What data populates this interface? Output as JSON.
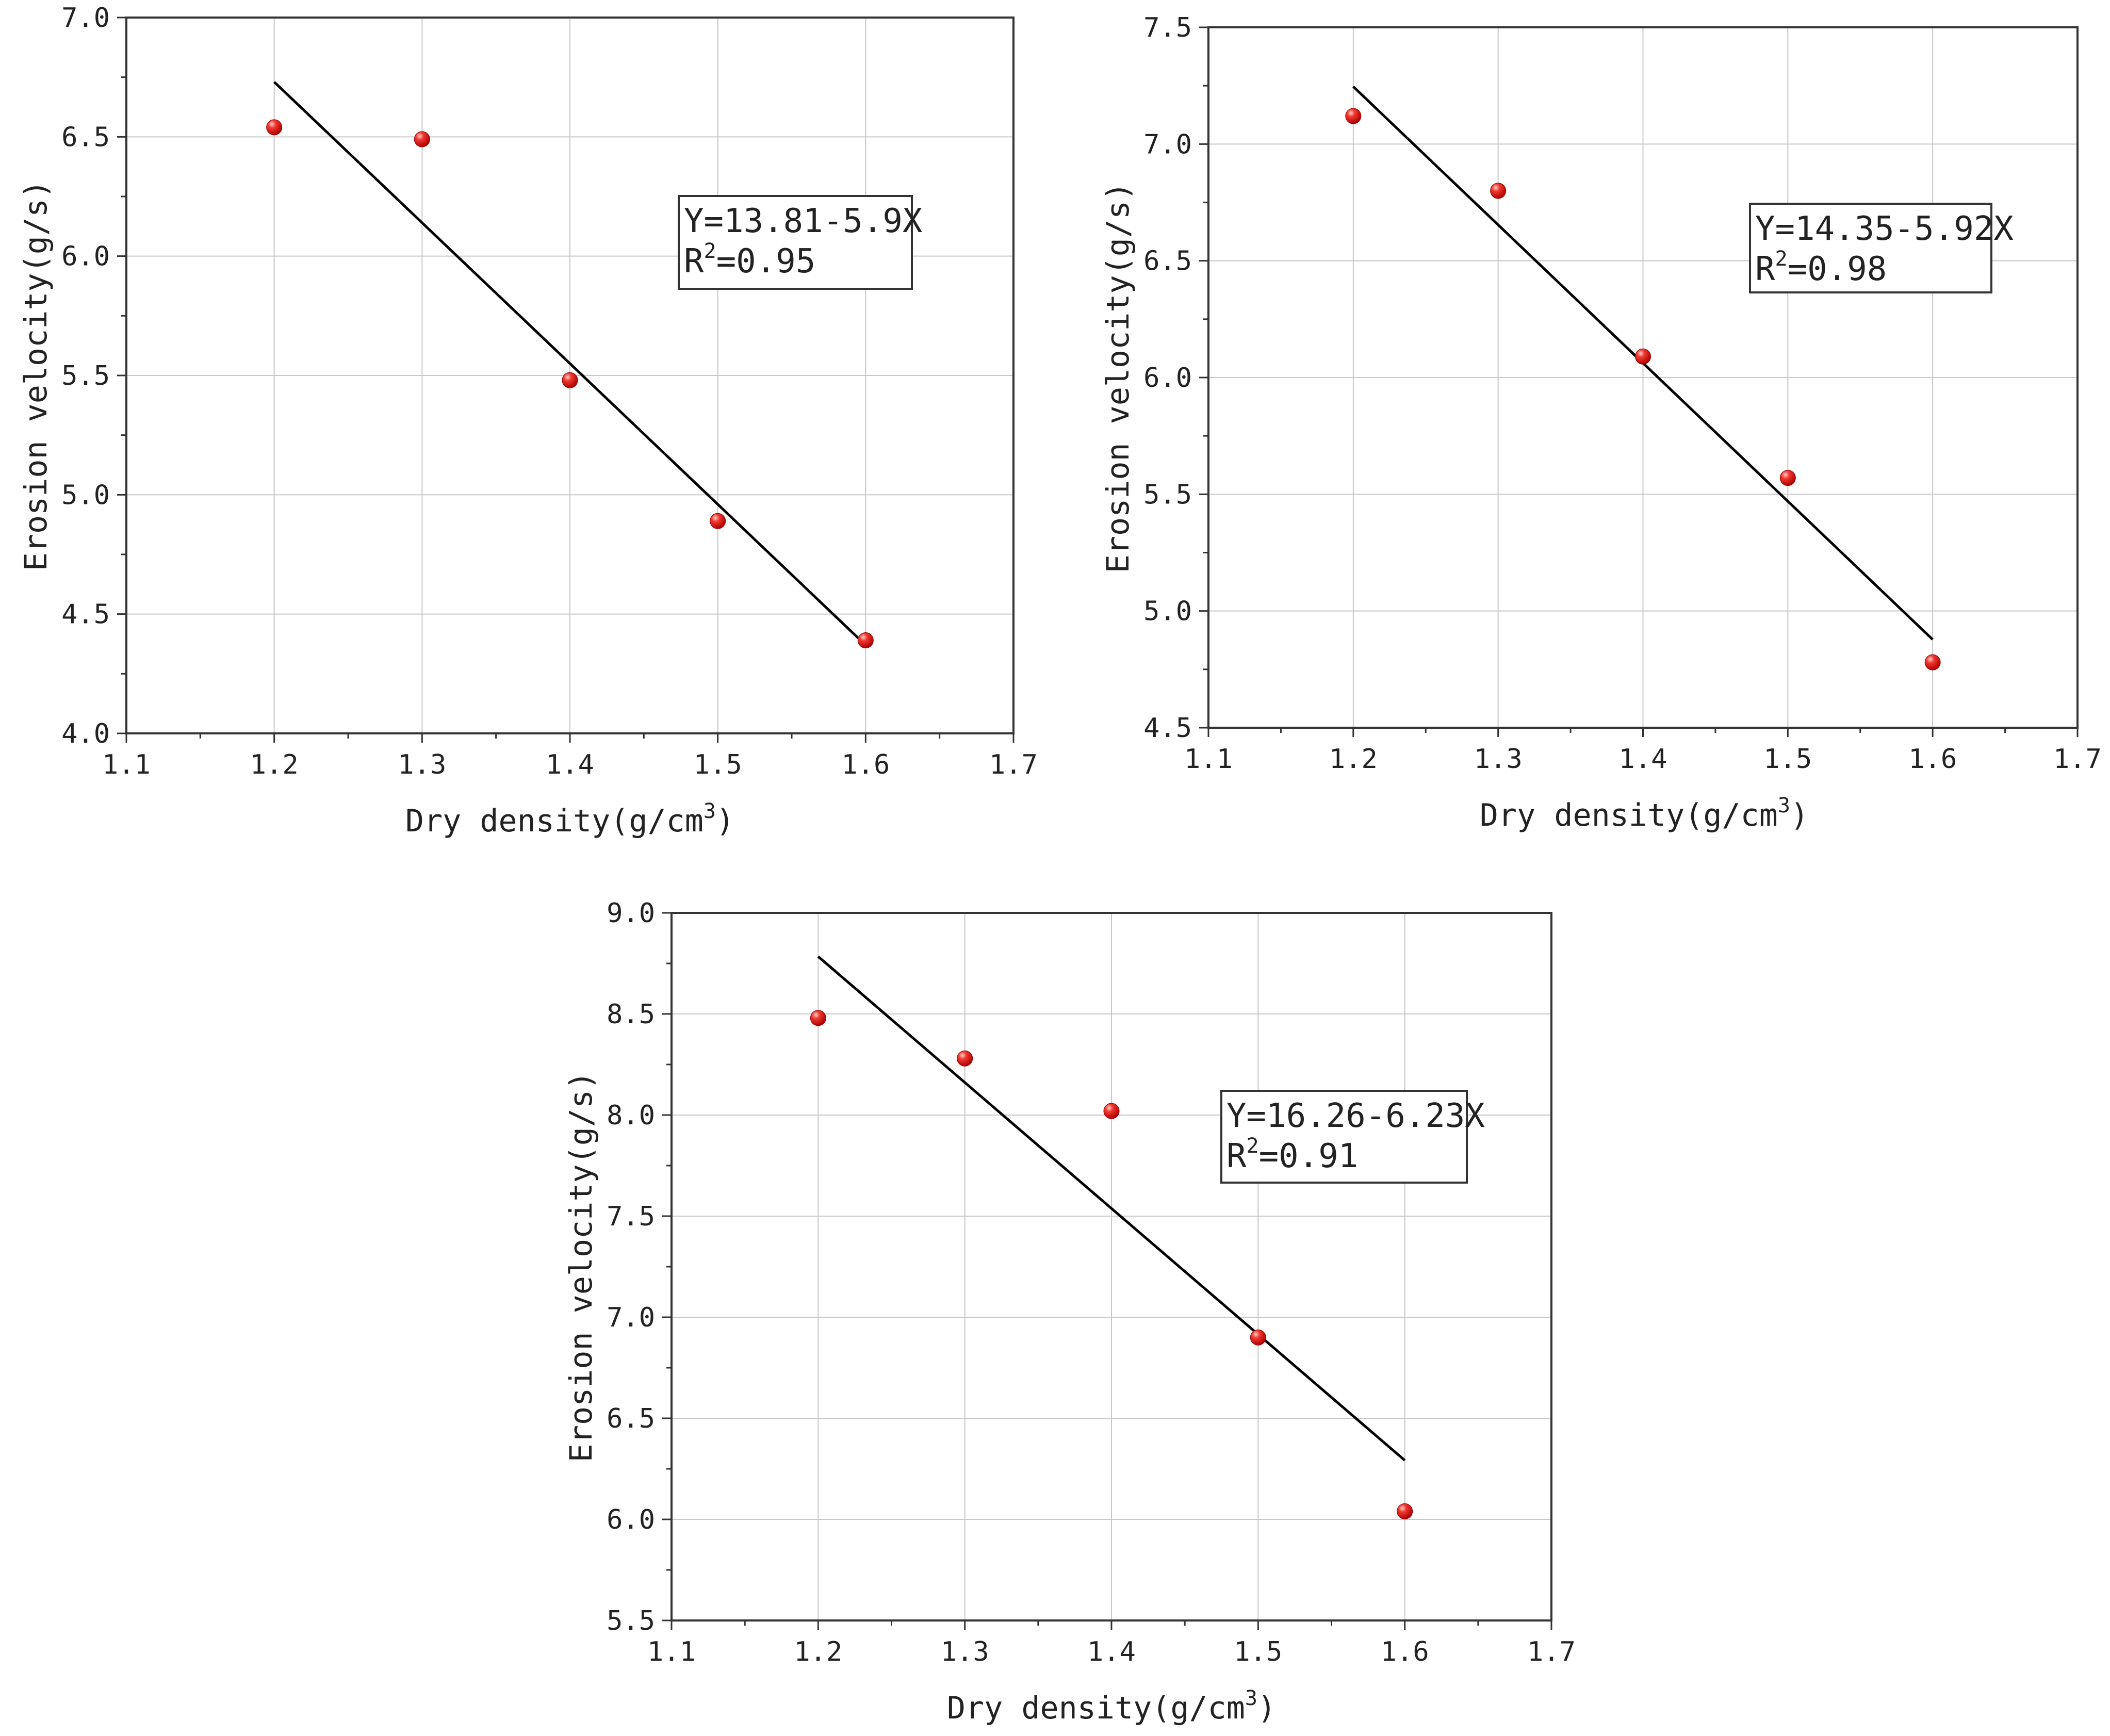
{
  "colors": {
    "point": "#e8201c",
    "line": "#000000",
    "grid": "#c8c8c8",
    "axis": "#333333"
  },
  "chart_data": [
    {
      "type": "scatter",
      "x": [
        1.2,
        1.3,
        1.4,
        1.5,
        1.6
      ],
      "y": [
        6.54,
        6.49,
        5.48,
        4.89,
        4.39
      ],
      "fit": {
        "intercept": 13.81,
        "slope": -5.9,
        "x_range": [
          1.2,
          1.6
        ]
      },
      "xlim": [
        1.1,
        1.7
      ],
      "ylim": [
        4.0,
        7.0
      ],
      "x_ticks": [
        "1.1",
        "1.2",
        "1.3",
        "1.4",
        "1.5",
        "1.6",
        "1.7"
      ],
      "y_ticks": [
        "4.0",
        "4.5",
        "5.0",
        "5.5",
        "6.0",
        "6.5",
        "7.0"
      ],
      "xlabel": {
        "text": "Dry density(g/cm",
        "sup": "3",
        "tail": ")"
      },
      "ylabel": "Erosion velocity(g/s)",
      "equation": "Y=13.81-5.9X",
      "r2": {
        "prefix": "R",
        "sup": "2",
        "value": "=0.95"
      },
      "grid": true
    },
    {
      "type": "scatter",
      "x": [
        1.2,
        1.3,
        1.4,
        1.5,
        1.6
      ],
      "y": [
        7.12,
        6.8,
        6.09,
        5.57,
        4.78
      ],
      "fit": {
        "intercept": 14.35,
        "slope": -5.92,
        "x_range": [
          1.2,
          1.6
        ]
      },
      "xlim": [
        1.1,
        1.7
      ],
      "ylim": [
        4.5,
        7.5
      ],
      "x_ticks": [
        "1.1",
        "1.2",
        "1.3",
        "1.4",
        "1.5",
        "1.6",
        "1.7"
      ],
      "y_ticks": [
        "4.5",
        "5.0",
        "5.5",
        "6.0",
        "6.5",
        "7.0",
        "7.5"
      ],
      "xlabel": {
        "text": "Dry density(g/cm",
        "sup": "3",
        "tail": ")"
      },
      "ylabel": "Erosion velocity(g/s)",
      "equation": "Y=14.35-5.92X",
      "r2": {
        "prefix": "R",
        "sup": "2",
        "value": "=0.98"
      },
      "grid": true
    },
    {
      "type": "scatter",
      "x": [
        1.2,
        1.3,
        1.4,
        1.5,
        1.6
      ],
      "y": [
        8.48,
        8.28,
        8.02,
        6.9,
        6.04
      ],
      "fit": {
        "intercept": 16.26,
        "slope": -6.23,
        "x_range": [
          1.2,
          1.6
        ]
      },
      "xlim": [
        1.1,
        1.7
      ],
      "ylim": [
        5.5,
        9.0
      ],
      "x_ticks": [
        "1.1",
        "1.2",
        "1.3",
        "1.4",
        "1.5",
        "1.6",
        "1.7"
      ],
      "y_ticks": [
        "5.5",
        "6.0",
        "6.5",
        "7.0",
        "7.5",
        "8.0",
        "8.5",
        "9.0"
      ],
      "xlabel": {
        "text": "Dry density(g/cm",
        "sup": "3",
        "tail": ")"
      },
      "ylabel": "Erosion velocity(g/s)",
      "equation": "Y=16.26-6.23X",
      "r2": {
        "prefix": "R",
        "sup": "2",
        "value": "=0.91"
      },
      "grid": true
    }
  ]
}
